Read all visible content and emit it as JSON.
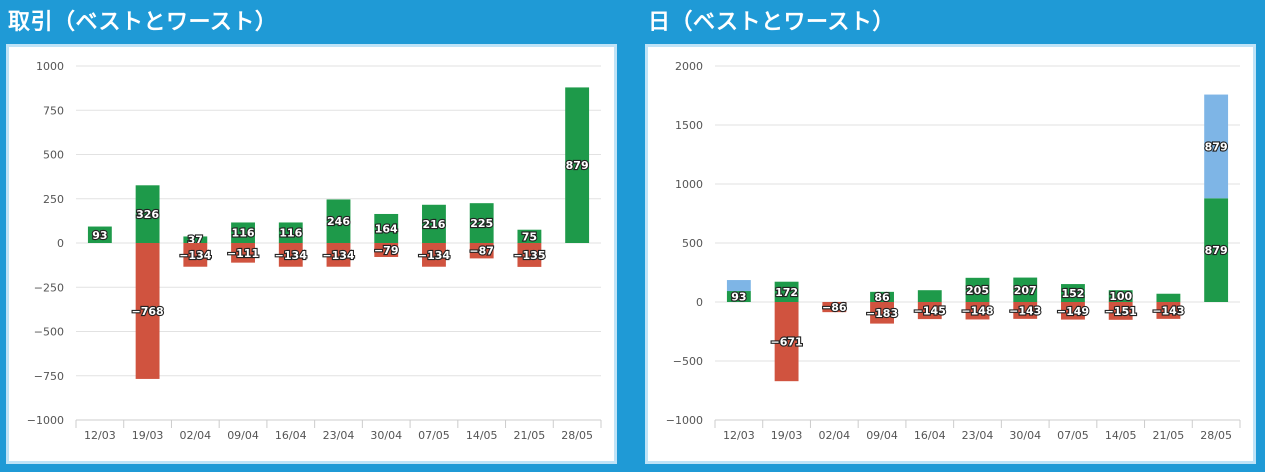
{
  "chart_data": [
    {
      "type": "bar",
      "title": "取引（ベストとワースト）",
      "categories": [
        "12/03",
        "19/03",
        "02/04",
        "09/04",
        "16/04",
        "23/04",
        "30/04",
        "07/05",
        "14/05",
        "21/05",
        "28/05"
      ],
      "ylim": [
        -1000,
        1000
      ],
      "yticks": [
        1000,
        750,
        500,
        250,
        0,
        -250,
        -500,
        -750,
        -1000
      ],
      "ytick_labels": [
        "1000",
        "750",
        "500",
        "250",
        "0",
        "−250",
        "−500",
        "−750",
        "−1000"
      ],
      "series": [
        {
          "color": "#1e9a4a",
          "values": [
            93,
            326,
            37,
            116,
            116,
            246,
            164,
            216,
            225,
            75,
            879
          ],
          "labels": [
            "93",
            "326",
            "37",
            "116",
            "116",
            "246",
            "164",
            "216",
            "225",
            "75",
            "879"
          ]
        },
        {
          "color": "#d0533f",
          "values": [
            null,
            -768,
            -134,
            -111,
            -134,
            -134,
            -79,
            -134,
            -87,
            -135,
            null
          ],
          "labels": [
            "",
            "−768",
            "−134",
            "−111",
            "−134",
            "−134",
            "−79",
            "−134",
            "−87",
            "−135",
            ""
          ]
        }
      ]
    },
    {
      "type": "bar",
      "title": "日（ベストとワースト）",
      "categories": [
        "12/03",
        "19/03",
        "02/04",
        "09/04",
        "16/04",
        "23/04",
        "30/04",
        "07/05",
        "14/05",
        "21/05",
        "28/05"
      ],
      "ylim": [
        -1000,
        2000
      ],
      "yticks": [
        2000,
        1500,
        1000,
        500,
        0,
        -500,
        -1000
      ],
      "ytick_labels": [
        "2000",
        "1500",
        "1000",
        "500",
        "0",
        "−500",
        "−1000"
      ],
      "series": [
        {
          "color": "#1e9a4a",
          "values": [
            93,
            172,
            null,
            86,
            100,
            205,
            207,
            152,
            100,
            70,
            879
          ],
          "labels": [
            "93",
            "172",
            "",
            "86",
            "",
            "205",
            "207",
            "152",
            "100",
            "",
            "879"
          ]
        },
        {
          "color": "#7eb5e6",
          "stacked": true,
          "values": [
            93,
            null,
            null,
            null,
            null,
            null,
            null,
            null,
            null,
            null,
            879
          ],
          "labels": [
            "",
            "",
            "",
            "",
            "",
            "",
            "",
            "",
            "",
            "",
            "879"
          ]
        },
        {
          "color": "#d0533f",
          "values": [
            null,
            -671,
            -86,
            -183,
            -145,
            -148,
            -143,
            -149,
            -151,
            -143,
            null
          ],
          "labels": [
            "",
            "−671",
            "−86",
            "−183",
            "−145",
            "−148",
            "−143",
            "−149",
            "−151",
            "−143",
            ""
          ]
        }
      ]
    }
  ]
}
